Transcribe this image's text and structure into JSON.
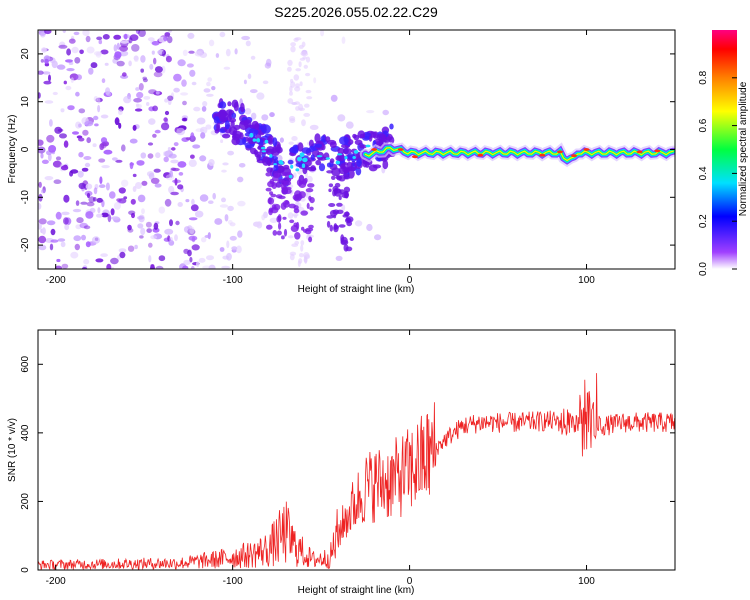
{
  "title": "S225.2026.055.02.22.C29",
  "chart_data": [
    {
      "type": "heatmap",
      "xlabel": "Height of straight line (km)",
      "ylabel": "Frequency (Hz)",
      "xlim": [
        -210,
        150
      ],
      "ylim": [
        -25,
        25
      ],
      "xticks": [
        -200,
        -100,
        0,
        100
      ],
      "yticks": [
        -20,
        -10,
        0,
        10,
        20
      ],
      "grid": false,
      "colorbar": {
        "label": "Normalized spectral amplitude",
        "range": [
          0,
          1
        ],
        "ticks": [
          "0.0",
          "0.2",
          "0.4",
          "0.6",
          "0.8"
        ],
        "colormap": [
          "#ffffff",
          "#8000ff",
          "#0000ff",
          "#00ffff",
          "#00ff00",
          "#ffff00",
          "#ff8000",
          "#ff0000",
          "#ff0080"
        ]
      },
      "ridge": {
        "x": [
          -100,
          -90,
          -80,
          -75,
          -70,
          -60,
          -50,
          -40,
          -30,
          -20,
          -10,
          0,
          20,
          60,
          100,
          150
        ],
        "freq": [
          6,
          4,
          0,
          -3,
          -5,
          -2,
          -1,
          -2,
          -1,
          0,
          1,
          0,
          0,
          0,
          0,
          0
        ]
      }
    },
    {
      "type": "line",
      "xlabel": "Height of straight line (km)",
      "ylabel": "SNR (10 * v/v)",
      "xlim": [
        -210,
        150
      ],
      "ylim": [
        0,
        700
      ],
      "xticks": [
        -200,
        -100,
        0,
        100
      ],
      "yticks": [
        0,
        200,
        400,
        600
      ],
      "grid": false,
      "series": [
        {
          "color": "#ee2222",
          "envelope": {
            "x": [
              -210,
              -130,
              -110,
              -90,
              -80,
              -70,
              -65,
              -55,
              -45,
              -40,
              -35,
              -30,
              -25,
              -20,
              -10,
              0,
              10,
              20,
              25,
              30,
              40,
              60,
              80,
              90,
              95,
              100,
              103,
              105,
              110,
              120,
              150
            ],
            "y": [
              15,
              20,
              30,
              45,
              60,
              110,
              70,
              30,
              35,
              110,
              160,
              200,
              240,
              250,
              260,
              290,
              330,
              380,
              400,
              420,
              430,
              430,
              435,
              430,
              430,
              440,
              440,
              430,
              420,
              430,
              430
            ]
          }
        }
      ]
    }
  ]
}
